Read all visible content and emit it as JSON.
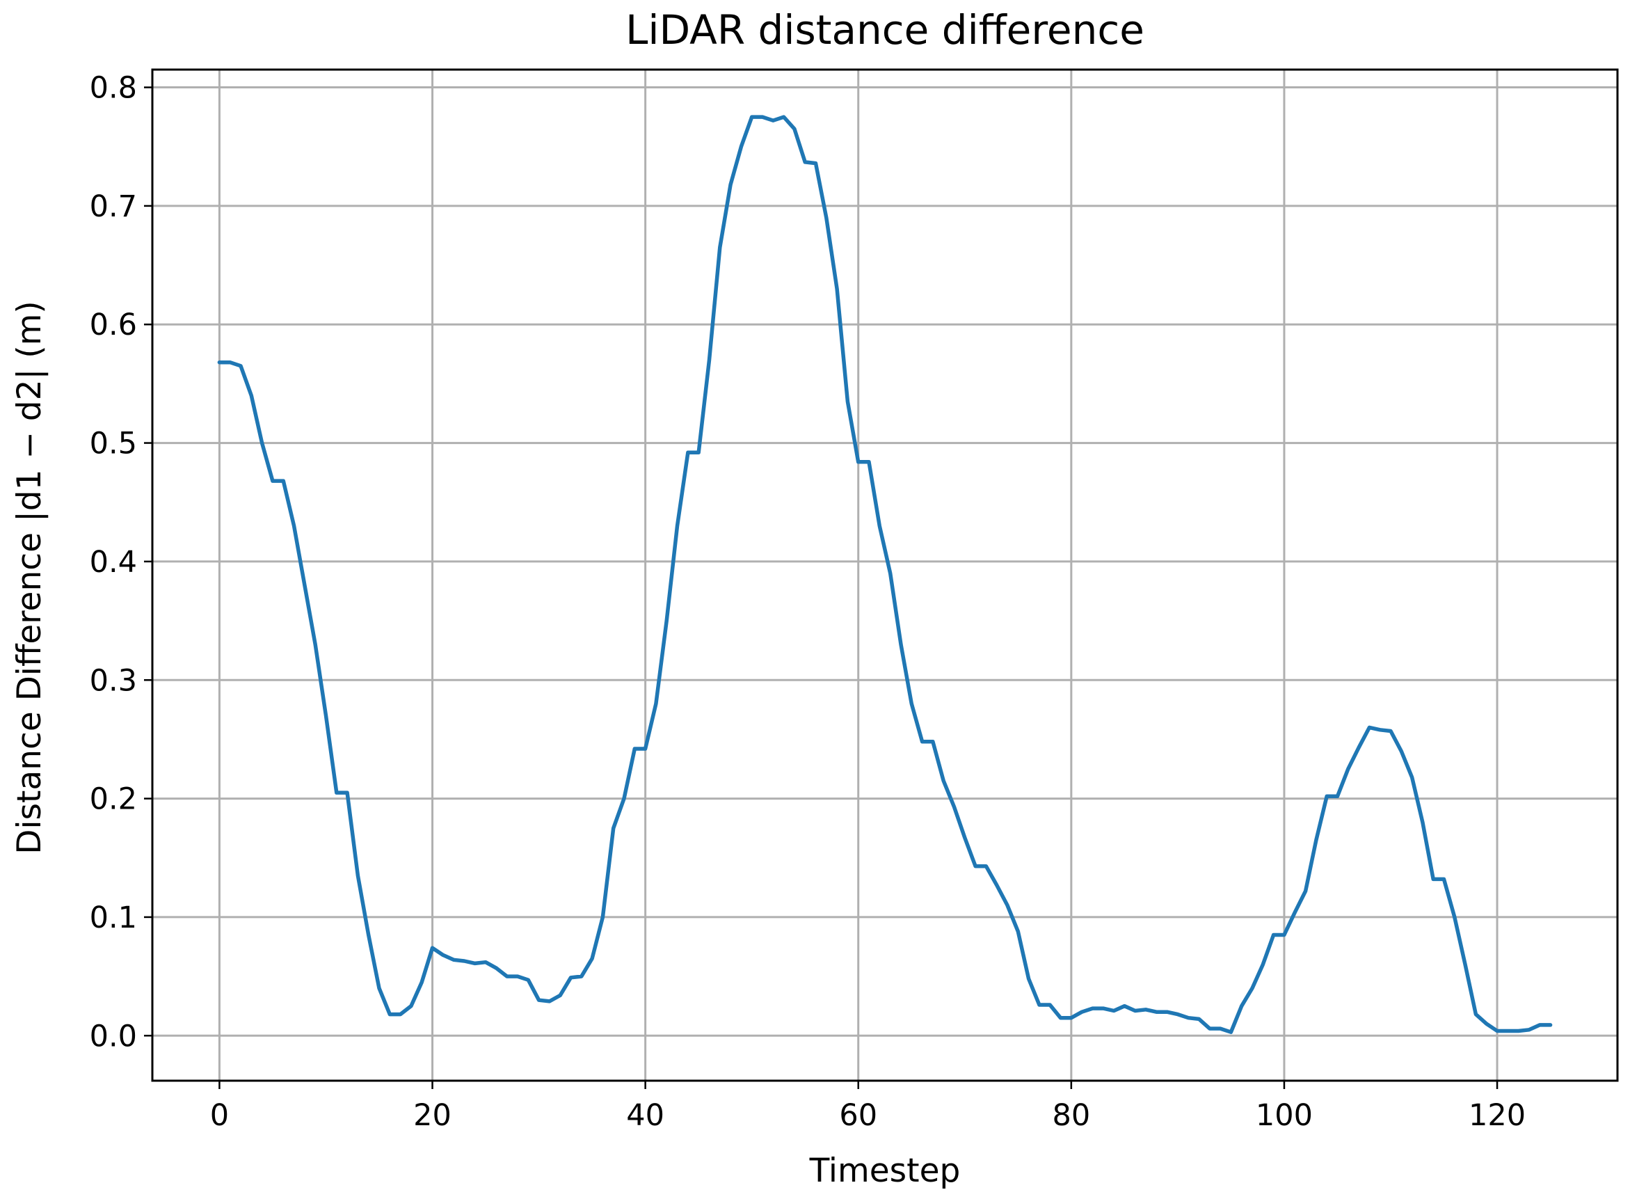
{
  "chart_data": {
    "type": "line",
    "title": "LiDAR distance difference",
    "xlabel": "Timestep",
    "ylabel": "Distance Difference |d1 − d2| (m)",
    "xlim": [
      -6.3,
      131.3
    ],
    "ylim": [
      -0.038,
      0.815
    ],
    "xticks": [
      0,
      20,
      40,
      60,
      80,
      100,
      120
    ],
    "xtick_labels": [
      "0",
      "20",
      "40",
      "60",
      "80",
      "100",
      "120"
    ],
    "yticks": [
      0.0,
      0.1,
      0.2,
      0.3,
      0.4,
      0.5,
      0.6,
      0.7,
      0.8
    ],
    "ytick_labels": [
      "0.0",
      "0.1",
      "0.2",
      "0.3",
      "0.4",
      "0.5",
      "0.6",
      "0.7",
      "0.8"
    ],
    "grid": true,
    "series": [
      {
        "color": "#1f77b4",
        "x": [
          0,
          1,
          2,
          3,
          4,
          5,
          6,
          7,
          8,
          9,
          10,
          11,
          12,
          13,
          14,
          15,
          16,
          17,
          18,
          19,
          20,
          21,
          22,
          23,
          24,
          25,
          26,
          27,
          28,
          29,
          30,
          31,
          32,
          33,
          34,
          35,
          36,
          37,
          38,
          39,
          40,
          41,
          42,
          43,
          44,
          45,
          46,
          47,
          48,
          49,
          50,
          51,
          52,
          53,
          54,
          55,
          56,
          57,
          58,
          59,
          60,
          61,
          62,
          63,
          64,
          65,
          66,
          67,
          68,
          69,
          70,
          71,
          72,
          73,
          74,
          75,
          76,
          77,
          78,
          79,
          80,
          81,
          82,
          83,
          84,
          85,
          86,
          87,
          88,
          89,
          90,
          91,
          92,
          93,
          94,
          95,
          96,
          97,
          98,
          99,
          100,
          101,
          102,
          103,
          104,
          105,
          106,
          107,
          108,
          109,
          110,
          111,
          112,
          113,
          114,
          115,
          116,
          117,
          118,
          119,
          120,
          121,
          122,
          123,
          124,
          125
        ],
        "values": [
          0.568,
          0.568,
          0.565,
          0.54,
          0.5,
          0.468,
          0.468,
          0.43,
          0.38,
          0.33,
          0.27,
          0.205,
          0.205,
          0.135,
          0.085,
          0.04,
          0.018,
          0.018,
          0.025,
          0.045,
          0.074,
          0.068,
          0.064,
          0.063,
          0.061,
          0.062,
          0.057,
          0.05,
          0.05,
          0.047,
          0.03,
          0.029,
          0.034,
          0.049,
          0.05,
          0.065,
          0.1,
          0.175,
          0.2,
          0.242,
          0.242,
          0.28,
          0.35,
          0.43,
          0.492,
          0.492,
          0.57,
          0.665,
          0.718,
          0.75,
          0.775,
          0.775,
          0.772,
          0.775,
          0.765,
          0.737,
          0.736,
          0.69,
          0.63,
          0.535,
          0.484,
          0.484,
          0.43,
          0.39,
          0.33,
          0.28,
          0.248,
          0.248,
          0.215,
          0.193,
          0.167,
          0.143,
          0.143,
          0.127,
          0.11,
          0.088,
          0.048,
          0.026,
          0.026,
          0.015,
          0.015,
          0.02,
          0.023,
          0.023,
          0.021,
          0.025,
          0.021,
          0.022,
          0.02,
          0.02,
          0.018,
          0.015,
          0.014,
          0.006,
          0.006,
          0.003,
          0.025,
          0.04,
          0.06,
          0.085,
          0.085,
          0.104,
          0.122,
          0.165,
          0.202,
          0.202,
          0.225,
          0.243,
          0.26,
          0.258,
          0.257,
          0.24,
          0.218,
          0.18,
          0.132,
          0.132,
          0.1,
          0.06,
          0.018,
          0.01,
          0.004,
          0.004,
          0.004,
          0.005,
          0.009,
          0.009
        ]
      }
    ]
  }
}
